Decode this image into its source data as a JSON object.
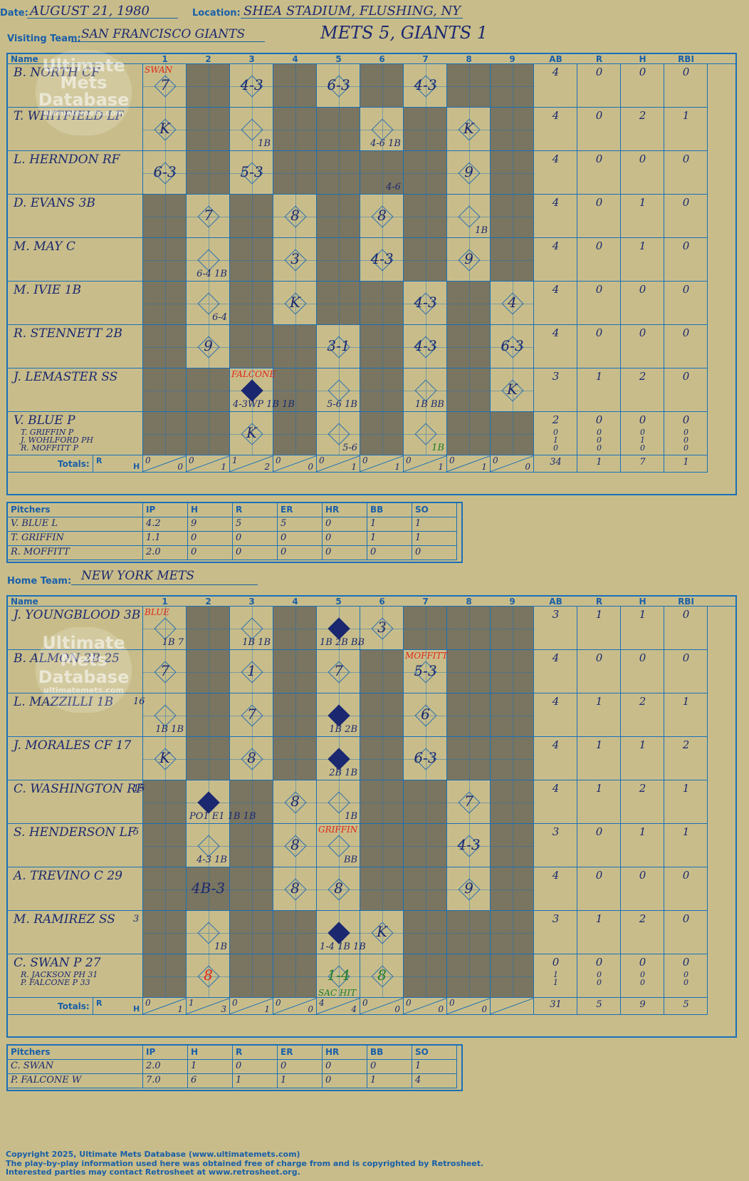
{
  "header": {
    "date_label": "Date:",
    "date": "AUGUST 21, 1980",
    "location_label": "Location:",
    "location": "SHEA STADIUM, FLUSHING, NY",
    "visiting_label": "Visiting Team:",
    "visiting_team": "SAN FRANCISCO GIANTS",
    "result": "METS 5, GIANTS 1",
    "home_label": "Home Team:",
    "home_team": "NEW YORK METS"
  },
  "columns": {
    "name": "Name",
    "innings": [
      "1",
      "2",
      "3",
      "4",
      "5",
      "6",
      "7",
      "8",
      "9"
    ],
    "stats": [
      "AB",
      "R",
      "H",
      "RBI"
    ],
    "totals": "Totals:",
    "r": "R",
    "h": "H"
  },
  "visitors": {
    "dark": [
      [
        0,
        1,
        0,
        1,
        0,
        1,
        0,
        1,
        1
      ],
      [
        0,
        1,
        0,
        1,
        1,
        0,
        1,
        0,
        1
      ],
      [
        0,
        1,
        0,
        1,
        1,
        1,
        1,
        0,
        1
      ],
      [
        1,
        0,
        1,
        0,
        1,
        0,
        1,
        0,
        1
      ],
      [
        1,
        0,
        1,
        0,
        1,
        0,
        1,
        0,
        1
      ],
      [
        1,
        0,
        1,
        0,
        1,
        1,
        0,
        1,
        0
      ],
      [
        1,
        0,
        1,
        1,
        0,
        1,
        0,
        1,
        0
      ],
      [
        1,
        1,
        0,
        1,
        0,
        1,
        0,
        1,
        0
      ],
      [
        1,
        1,
        0,
        1,
        0,
        1,
        0,
        1,
        1
      ]
    ],
    "batters": [
      {
        "name": "B. NORTH CF",
        "ab": "4",
        "r": "0",
        "h": "0",
        "rbi": "0"
      },
      {
        "name": "T. WHITFIELD LF",
        "ab": "4",
        "r": "0",
        "h": "2",
        "rbi": "1"
      },
      {
        "name": "L. HERNDON RF",
        "ab": "4",
        "r": "0",
        "h": "0",
        "rbi": "0"
      },
      {
        "name": "D. EVANS 3B",
        "ab": "4",
        "r": "0",
        "h": "1",
        "rbi": "0"
      },
      {
        "name": "M. MAY C",
        "ab": "4",
        "r": "0",
        "h": "1",
        "rbi": "0"
      },
      {
        "name": "M. IVIE 1B",
        "ab": "4",
        "r": "0",
        "h": "0",
        "rbi": "0"
      },
      {
        "name": "R. STENNETT 2B",
        "ab": "4",
        "r": "0",
        "h": "0",
        "rbi": "0"
      },
      {
        "name": "J. LEMASTER SS",
        "ab": "3",
        "r": "1",
        "h": "2",
        "rbi": "0"
      },
      {
        "name": "V. BLUE P",
        "ab": "2",
        "r": "0",
        "h": "0",
        "rbi": "0"
      }
    ],
    "subs": [
      {
        "name": "T. GRIFFIN P",
        "cls": "red",
        "ab": "0",
        "r": "0",
        "h": "0",
        "rbi": "0"
      },
      {
        "name": "J. WOHLFORD PH",
        "cls": "green",
        "ab": "1",
        "r": "0",
        "h": "1",
        "rbi": "0"
      },
      {
        "name": "R. MOFFITT P",
        "cls": "",
        "ab": "0",
        "r": "0",
        "h": "0",
        "rbi": "0"
      }
    ],
    "marks": [
      {
        "row": 0,
        "inn": 0,
        "text": "7"
      },
      {
        "row": 0,
        "inn": 2,
        "text": "4-3"
      },
      {
        "row": 0,
        "inn": 4,
        "text": "6-3"
      },
      {
        "row": 0,
        "inn": 6,
        "text": "4-3"
      },
      {
        "row": 1,
        "inn": 0,
        "text": "K"
      },
      {
        "row": 1,
        "inn": 2,
        "text": "1B",
        "small": true
      },
      {
        "row": 1,
        "inn": 5,
        "text": "4-6 1B",
        "small": true
      },
      {
        "row": 1,
        "inn": 7,
        "text": "K"
      },
      {
        "row": 2,
        "inn": 0,
        "text": "6-3"
      },
      {
        "row": 2,
        "inn": 2,
        "text": "5-3"
      },
      {
        "row": 2,
        "inn": 5,
        "text": "4-6",
        "small": true
      },
      {
        "row": 2,
        "inn": 7,
        "text": "9"
      },
      {
        "row": 3,
        "inn": 1,
        "text": "7"
      },
      {
        "row": 3,
        "inn": 3,
        "text": "8"
      },
      {
        "row": 3,
        "inn": 5,
        "text": "8"
      },
      {
        "row": 3,
        "inn": 7,
        "text": "1B",
        "small": true
      },
      {
        "row": 4,
        "inn": 1,
        "text": "6-4 1B",
        "small": true
      },
      {
        "row": 4,
        "inn": 3,
        "text": "3"
      },
      {
        "row": 4,
        "inn": 5,
        "text": "4-3"
      },
      {
        "row": 4,
        "inn": 7,
        "text": "9"
      },
      {
        "row": 5,
        "inn": 1,
        "text": "6-4",
        "small": true
      },
      {
        "row": 5,
        "inn": 3,
        "text": "K"
      },
      {
        "row": 5,
        "inn": 6,
        "text": "4-3"
      },
      {
        "row": 5,
        "inn": 8,
        "text": "4"
      },
      {
        "row": 6,
        "inn": 1,
        "text": "9"
      },
      {
        "row": 6,
        "inn": 4,
        "text": "3-1"
      },
      {
        "row": 6,
        "inn": 6,
        "text": "4-3"
      },
      {
        "row": 6,
        "inn": 8,
        "text": "6-3"
      },
      {
        "row": 7,
        "inn": 2,
        "text": "4-3WP 1B 1B",
        "small": true,
        "filled": true
      },
      {
        "row": 7,
        "inn": 4,
        "text": "5-6 1B",
        "small": true
      },
      {
        "row": 7,
        "inn": 6,
        "text": "1B BB",
        "small": true
      },
      {
        "row": 7,
        "inn": 8,
        "text": "K"
      },
      {
        "row": 8,
        "inn": 2,
        "text": "K"
      },
      {
        "row": 8,
        "inn": 4,
        "text": "5-6",
        "small": true
      },
      {
        "row": 8,
        "inn": 6,
        "text": "1B",
        "small": true,
        "cls": "green"
      }
    ],
    "notes": [
      {
        "row": 0,
        "inn": 0,
        "text": "SWAN",
        "cls": "red"
      },
      {
        "row": 7,
        "inn": 2,
        "text": "FALCONE",
        "cls": "red"
      }
    ],
    "totals": {
      "rh": [
        [
          "0",
          "0"
        ],
        [
          "0",
          "1"
        ],
        [
          "1",
          "2"
        ],
        [
          "0",
          "0"
        ],
        [
          "0",
          "1"
        ],
        [
          "0",
          "1"
        ],
        [
          "0",
          "1"
        ],
        [
          "0",
          "1"
        ],
        [
          "0",
          "0"
        ]
      ],
      "ab": "34",
      "r": "1",
      "h": "7",
      "rbi": "1"
    },
    "pitchers": {
      "headers": [
        "Pitchers",
        "IP",
        "H",
        "R",
        "ER",
        "HR",
        "BB",
        "SO"
      ],
      "rows": [
        [
          "V. BLUE  L",
          "4.2",
          "9",
          "5",
          "5",
          "0",
          "1",
          "1"
        ],
        [
          "T. GRIFFIN",
          "1.1",
          "0",
          "0",
          "0",
          "0",
          "1",
          "1"
        ],
        [
          "R. MOFFITT",
          "2.0",
          "0",
          "0",
          "0",
          "0",
          "0",
          "0"
        ]
      ]
    }
  },
  "home": {
    "dark": [
      [
        0,
        1,
        0,
        1,
        0,
        0,
        1,
        1,
        1
      ],
      [
        0,
        1,
        0,
        1,
        0,
        1,
        0,
        1,
        1
      ],
      [
        0,
        1,
        0,
        1,
        0,
        1,
        0,
        1,
        1
      ],
      [
        0,
        1,
        0,
        1,
        0,
        1,
        0,
        1,
        1
      ],
      [
        1,
        0,
        1,
        0,
        0,
        1,
        1,
        0,
        1
      ],
      [
        1,
        0,
        1,
        0,
        0,
        1,
        1,
        0,
        1
      ],
      [
        1,
        1,
        1,
        0,
        0,
        1,
        1,
        0,
        1
      ],
      [
        1,
        0,
        1,
        1,
        0,
        0,
        1,
        1,
        1
      ],
      [
        1,
        0,
        1,
        1,
        0,
        0,
        1,
        1,
        1
      ]
    ],
    "batters": [
      {
        "name": "J. YOUNGBLOOD 3B",
        "ab": "3",
        "r": "1",
        "h": "1",
        "rbi": "0"
      },
      {
        "name": "B. ALMON 2B  25",
        "ab": "4",
        "r": "0",
        "h": "0",
        "rbi": "0"
      },
      {
        "name": "L. MAZZILLI 1B",
        "ab": "4",
        "r": "1",
        "h": "2",
        "rbi": "1"
      },
      {
        "name": "J. MORALES CF  17",
        "ab": "4",
        "r": "1",
        "h": "1",
        "rbi": "2"
      },
      {
        "name": "C. WASHINGTON RF",
        "ab": "4",
        "r": "1",
        "h": "2",
        "rbi": "1"
      },
      {
        "name": "S. HENDERSON LF",
        "ab": "3",
        "r": "0",
        "h": "1",
        "rbi": "1"
      },
      {
        "name": "A. TREVINO C  29",
        "ab": "4",
        "r": "0",
        "h": "0",
        "rbi": "0"
      },
      {
        "name": "M. RAMIREZ SS",
        "ab": "3",
        "r": "1",
        "h": "2",
        "rbi": "0"
      },
      {
        "name": "C. SWAN P  27",
        "ab": "0",
        "r": "0",
        "h": "0",
        "rbi": "0"
      }
    ],
    "subs": [
      {
        "name": "R. JACKSON PH  31",
        "cls": "red",
        "ab": "1",
        "r": "0",
        "h": "0",
        "rbi": "0"
      },
      {
        "name": "P. FALCONE P  33",
        "cls": "green",
        "ab": "1",
        "r": "0",
        "h": "0",
        "rbi": "0"
      }
    ],
    "numbers": [
      {
        "row": 2,
        "text": "16"
      },
      {
        "row": 4,
        "text": "15"
      },
      {
        "row": 5,
        "text": "5"
      },
      {
        "row": 7,
        "text": "3"
      }
    ],
    "marks": [
      {
        "row": 0,
        "inn": 0,
        "text": "1B 7",
        "small": true
      },
      {
        "row": 0,
        "inn": 2,
        "text": "1B 1B",
        "small": true
      },
      {
        "row": 0,
        "inn": 4,
        "text": "1B 2B BB",
        "small": true,
        "filled": true
      },
      {
        "row": 0,
        "inn": 5,
        "text": "3"
      },
      {
        "row": 1,
        "inn": 0,
        "text": "7"
      },
      {
        "row": 1,
        "inn": 2,
        "text": "1"
      },
      {
        "row": 1,
        "inn": 4,
        "text": "7"
      },
      {
        "row": 1,
        "inn": 6,
        "text": "5-3"
      },
      {
        "row": 2,
        "inn": 0,
        "text": "1B 1B",
        "small": true
      },
      {
        "row": 2,
        "inn": 2,
        "text": "7"
      },
      {
        "row": 2,
        "inn": 4,
        "text": "1B 2B",
        "small": true,
        "filled": true
      },
      {
        "row": 2,
        "inn": 6,
        "text": "6"
      },
      {
        "row": 3,
        "inn": 0,
        "text": "K"
      },
      {
        "row": 3,
        "inn": 2,
        "text": "8"
      },
      {
        "row": 3,
        "inn": 4,
        "text": "2B 1B",
        "small": true,
        "filled": true
      },
      {
        "row": 3,
        "inn": 6,
        "text": "6-3"
      },
      {
        "row": 4,
        "inn": 1,
        "text": "PO1 E1 1B 1B",
        "small": true,
        "filled": true
      },
      {
        "row": 4,
        "inn": 3,
        "text": "8"
      },
      {
        "row": 4,
        "inn": 4,
        "text": "1B",
        "small": true
      },
      {
        "row": 4,
        "inn": 7,
        "text": "7"
      },
      {
        "row": 5,
        "inn": 1,
        "text": "4-3 1B",
        "small": true
      },
      {
        "row": 5,
        "inn": 3,
        "text": "8"
      },
      {
        "row": 5,
        "inn": 4,
        "text": "BB",
        "small": true
      },
      {
        "row": 5,
        "inn": 7,
        "text": "4-3"
      },
      {
        "row": 6,
        "inn": 1,
        "text": "4B-3"
      },
      {
        "row": 6,
        "inn": 3,
        "text": "8"
      },
      {
        "row": 6,
        "inn": 4,
        "text": "8"
      },
      {
        "row": 6,
        "inn": 7,
        "text": "9"
      },
      {
        "row": 7,
        "inn": 1,
        "text": "1B",
        "small": true
      },
      {
        "row": 7,
        "inn": 4,
        "text": "1-4 1B 1B",
        "small": true,
        "filled": true
      },
      {
        "row": 7,
        "inn": 5,
        "text": "K"
      },
      {
        "row": 8,
        "inn": 1,
        "text": "8",
        "cls": "red"
      },
      {
        "row": 8,
        "inn": 4,
        "text": "1-4",
        "cls": "green"
      },
      {
        "row": 8,
        "inn": 5,
        "text": "8",
        "cls": "green"
      }
    ],
    "notes": [
      {
        "row": 0,
        "inn": 0,
        "text": "BLUE",
        "cls": "red"
      },
      {
        "row": 1,
        "inn": 6,
        "text": "MOFFITT",
        "cls": "red"
      },
      {
        "row": 5,
        "inn": 4,
        "text": "GRIFFIN",
        "cls": "red"
      },
      {
        "row": 8,
        "inn": 4,
        "text": "SAC HIT",
        "cls": "green",
        "bottom": true
      }
    ],
    "totals": {
      "rh": [
        [
          "0",
          "1"
        ],
        [
          "1",
          "3"
        ],
        [
          "0",
          "1"
        ],
        [
          "0",
          "0"
        ],
        [
          "4",
          "4"
        ],
        [
          "0",
          "0"
        ],
        [
          "0",
          "0"
        ],
        [
          "0",
          "0"
        ],
        [
          "",
          ""
        ]
      ],
      "ab": "31",
      "r": "5",
      "h": "9",
      "rbi": "5"
    },
    "pitchers": {
      "headers": [
        "Pitchers",
        "IP",
        "H",
        "R",
        "ER",
        "HR",
        "BB",
        "SO"
      ],
      "rows": [
        [
          "C. SWAN",
          "2.0",
          "1",
          "0",
          "0",
          "0",
          "0",
          "1"
        ],
        [
          "P. FALCONE  W",
          "7.0",
          "6",
          "1",
          "1",
          "0",
          "1",
          "4"
        ]
      ]
    }
  },
  "watermark": {
    "line1": "Ultimate",
    "line2": "Mets",
    "line3": "Database",
    "line4": "ultimatemets.com"
  },
  "footer": [
    "Copyright 2025, Ultimate Mets Database (www.ultimatemets.com)",
    "  The play-by-play information used here was obtained free of charge from and is copyrighted by Retrosheet.",
    "  Interested parties may contact Retrosheet at www.retrosheet.org."
  ]
}
